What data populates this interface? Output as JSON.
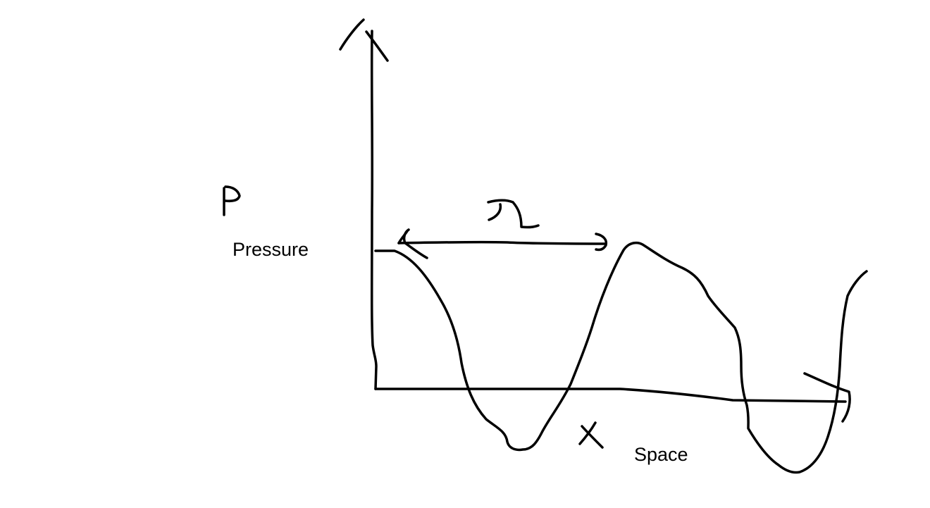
{
  "labels": {
    "y_axis_word": "Pressure",
    "x_axis_word": "Space"
  },
  "symbols": {
    "y_axis_symbol": "p-handwritten-symbol",
    "x_axis_symbol": "x-handwritten-symbol",
    "wavelength_symbol": "lambda-handwritten-symbol"
  },
  "colors": {
    "ink": "#000000",
    "background": "#ffffff"
  }
}
